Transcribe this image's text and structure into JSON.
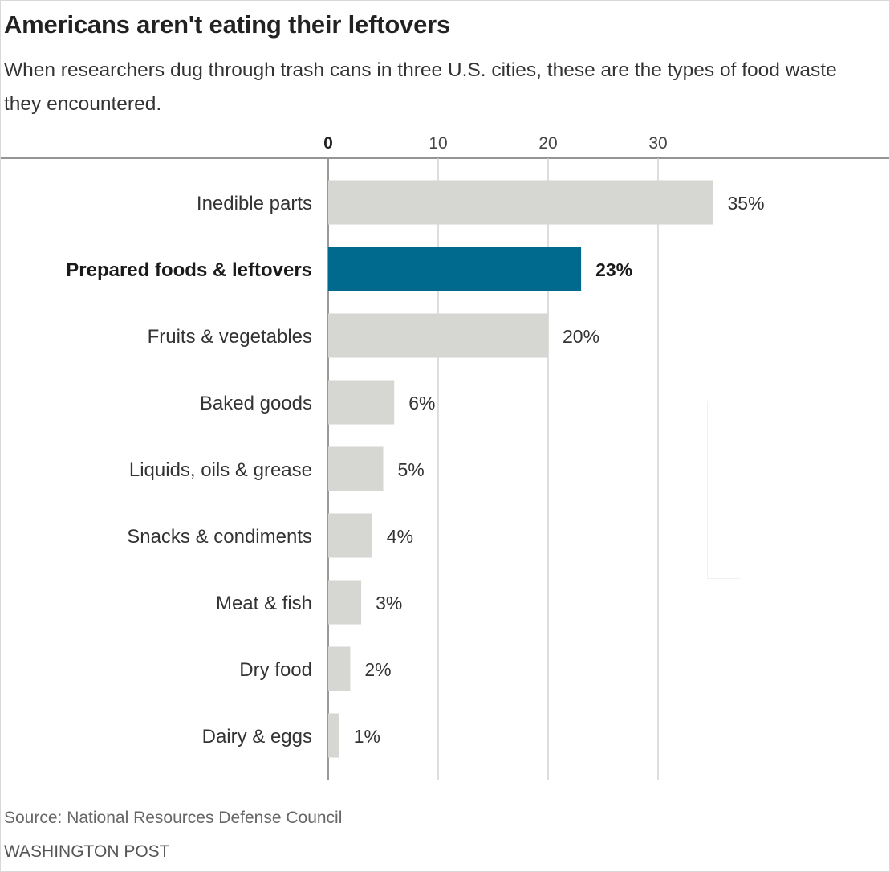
{
  "title": "Americans aren't eating their leftovers",
  "subtitle": "When researchers dug through trash cans in three U.S. cities, these are the types of food waste they encountered.",
  "source": "Source: National Resources Defense Council",
  "credit": "WASHINGTON POST",
  "colors": {
    "bar_default": "#d6d6d3",
    "bar_highlight": "#006a8e",
    "grid": "#cccccc",
    "axis": "#999999",
    "text": "#333333"
  },
  "chart_data": {
    "type": "bar",
    "orientation": "horizontal",
    "x_ticks": [
      "0",
      "10",
      "20",
      "30"
    ],
    "xlim": [
      0,
      40
    ],
    "grid": true,
    "highlight_index": 1,
    "categories": [
      "Inedible parts",
      "Prepared foods & leftovers",
      "Fruits & vegetables",
      "Baked goods",
      "Liquids, oils & grease",
      "Snacks & condiments",
      "Meat & fish",
      "Dry food",
      "Dairy & eggs"
    ],
    "values": [
      35,
      23,
      20,
      6,
      5,
      4,
      3,
      2,
      1
    ],
    "value_labels": [
      "35%",
      "23%",
      "20%",
      "6%",
      "5%",
      "4%",
      "3%",
      "2%",
      "1%"
    ]
  }
}
